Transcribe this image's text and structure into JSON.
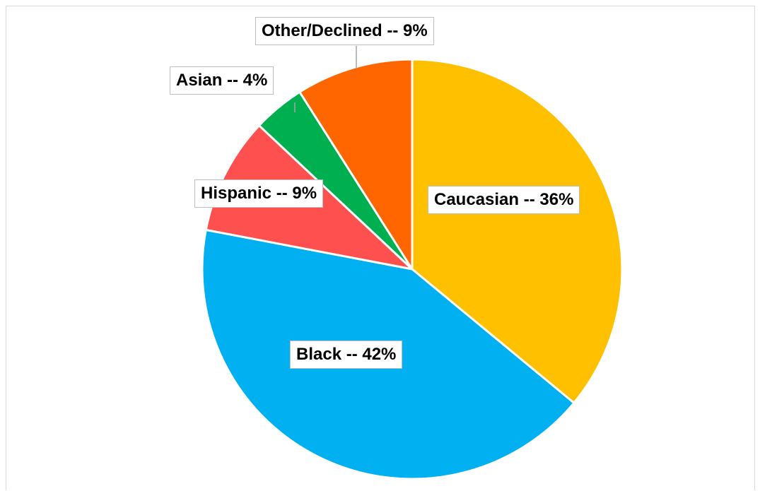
{
  "chart_data": {
    "type": "pie",
    "title": "",
    "label_separator": " -- ",
    "slices": [
      {
        "label": "Caucasian",
        "value": 36,
        "display": "36%",
        "color": "#FFC000"
      },
      {
        "label": "Black",
        "value": 42,
        "display": "42%",
        "color": "#00B0F0"
      },
      {
        "label": "Hispanic",
        "value": 9,
        "display": "9%",
        "color": "#FF5050"
      },
      {
        "label": "Asian",
        "value": 4,
        "display": "4%",
        "color": "#00B050"
      },
      {
        "label": "Other/Declined",
        "value": 9,
        "display": "9%",
        "color": "#FF6600"
      }
    ],
    "start_angle": "12 o'clock",
    "direction": "clockwise",
    "legend": "none",
    "data_labels": "boxed, bold"
  }
}
